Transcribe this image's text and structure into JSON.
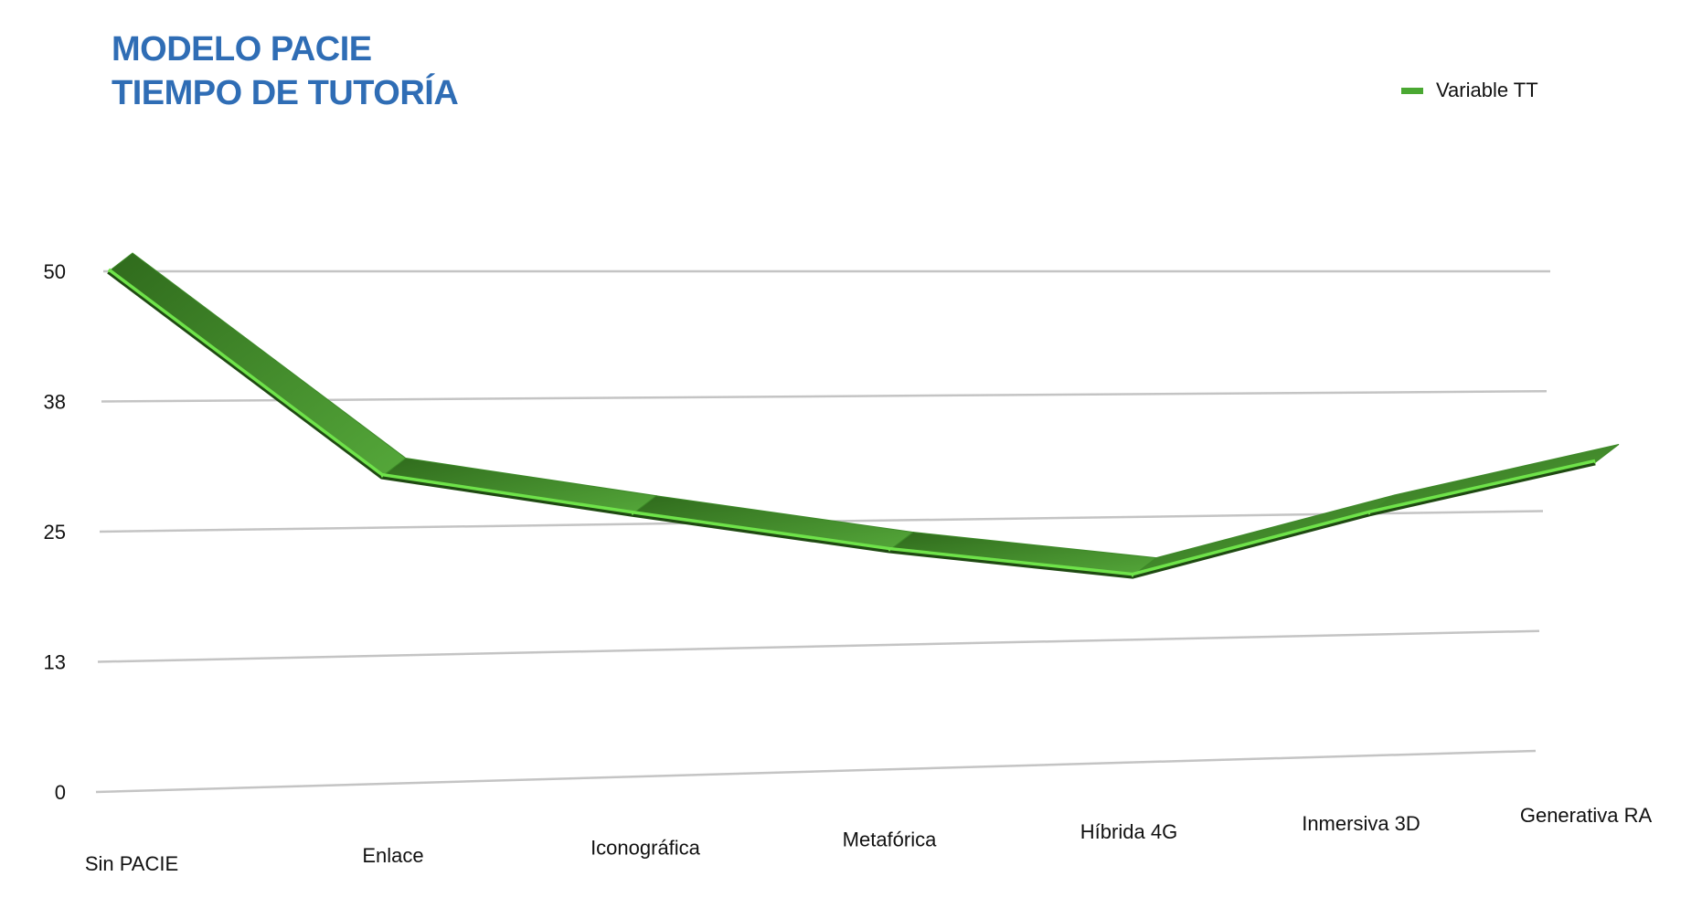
{
  "chart_data": {
    "type": "line",
    "title": [
      "MODELO PACIE",
      "TIEMPO DE TUTORÍA"
    ],
    "categories": [
      "Sin PACIE",
      "Enlace",
      "Iconográfica",
      "Metafórica",
      "Híbrida 4G",
      "Inmersiva 3D",
      "Generativa RA"
    ],
    "series": [
      {
        "name": "Variable TT",
        "values": [
          50,
          30,
          26,
          22,
          19,
          25,
          30
        ],
        "color": "#4aa832"
      }
    ],
    "yticks": [
      "0",
      "13",
      "25",
      "38",
      "50"
    ],
    "ylim": [
      0,
      50
    ],
    "grid": true,
    "legend": "top-right",
    "style": "3d-ribbon"
  }
}
